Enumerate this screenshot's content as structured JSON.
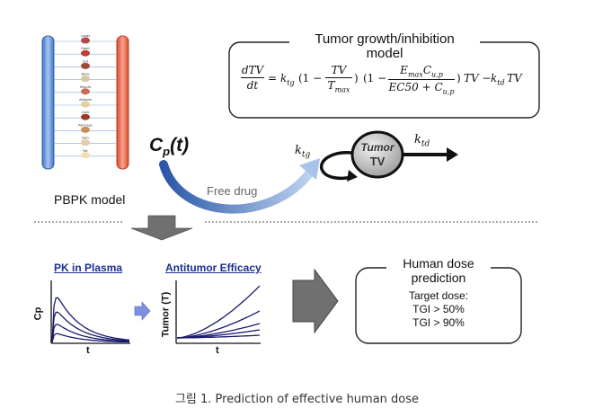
{
  "pbpk": {
    "label": "PBPK model",
    "organs": [
      "Lungs",
      "Heart",
      "Gut",
      "Bone",
      "Muscle",
      "Adipose",
      "Liver",
      "Pancreas",
      "Skin",
      "Fat"
    ]
  },
  "tumor_model": {
    "title": "Tumor growth/inhibition model",
    "equation": {
      "lhs_num": "dTV",
      "lhs_den": "dt",
      "eq_sign": "=",
      "ktg": "k",
      "ktg_sub": "tg",
      "term1_open": "(1 −",
      "tv_num": "TV",
      "tv_den": "T",
      "tv_den_sub": "max",
      "term1_close": ")",
      "term2_open": "(1 −",
      "emax_num": "E",
      "emax_sub": "max",
      "cup": "C",
      "cup_sub": "u,p",
      "ec_den": "EC50 + C",
      "ec_den_sub": "u,p",
      "term2_close": ")",
      "tv_mult": "TV −",
      "ktd": "k",
      "ktd_sub": "td",
      "tail": "TV"
    }
  },
  "flow": {
    "cp_label": "C",
    "cp_sub": "p",
    "cp_arg": "(t)",
    "free_drug": "Free drug",
    "ktg": "k",
    "ktg_sub": "tg",
    "tumor_top": "Tumor",
    "tumor_bottom": "TV",
    "ktd": "k",
    "ktd_sub": "td"
  },
  "pk_plot": {
    "title": "PK in Plasma",
    "ylabel": "Cp",
    "xlabel": "t"
  },
  "efficacy_plot": {
    "title": "Antitumor Efficacy",
    "ylabel": "Tumor (T)",
    "xlabel": "t"
  },
  "dose_box": {
    "title_line1": "Human dose",
    "title_line2": "prediction",
    "target": "Target dose:",
    "tgi1": "TGI > 50%",
    "tgi2": "TGI > 90%"
  },
  "caption": "그림 1. Prediction of effective human dose",
  "colors": {
    "vein": "#5b8fd6",
    "artery": "#e8674a",
    "arc_start": "#2d5fb0",
    "arc_end": "#a9c4ea",
    "curve": "#1a1a6e",
    "title_blue": "#1a2f8f",
    "small_arrow": "#7f8fe0",
    "gray_arrow": "#707070"
  }
}
